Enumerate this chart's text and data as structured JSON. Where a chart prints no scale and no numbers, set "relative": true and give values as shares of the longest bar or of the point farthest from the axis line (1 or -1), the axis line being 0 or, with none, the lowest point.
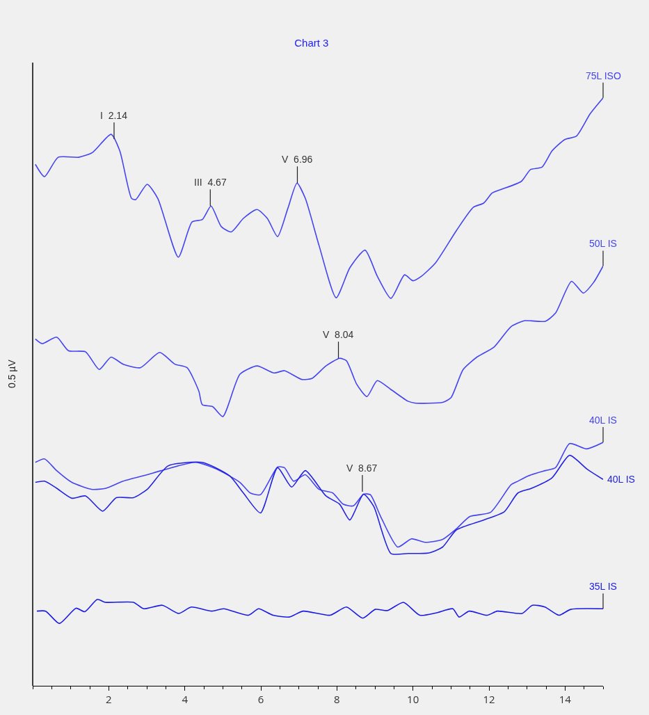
{
  "chart_data": {
    "type": "line",
    "title": "Chart 3",
    "ylabel": "0.5 µV",
    "relative": true,
    "legend": false,
    "grid": false,
    "marker": "none",
    "line_style": "solid",
    "xlim": [
      0,
      15
    ],
    "xticks": [
      2,
      4,
      6,
      8,
      10,
      12,
      14
    ],
    "annotations": [
      {
        "text": "I  2.14",
        "x": 2.14,
        "y": 0.93
      },
      {
        "text": "III  4.67",
        "x": 4.67,
        "y": 0.816
      },
      {
        "text": "V  6.96",
        "x": 6.96,
        "y": 0.855
      },
      {
        "text": "V  8.04",
        "x": 8.04,
        "y": 0.557
      },
      {
        "text": "V  8.67",
        "x": 8.67,
        "y": 0.33
      }
    ],
    "series": [
      {
        "name": "75L ISO",
        "color": "#4444f0",
        "x": [
          0.07,
          0.31,
          0.67,
          1.21,
          1.57,
          2.06,
          2.29,
          2.6,
          2.71,
          3.01,
          3.29,
          3.83,
          4.19,
          4.46,
          4.69,
          4.96,
          5.22,
          5.54,
          5.9,
          6.17,
          6.44,
          6.71,
          6.95,
          7.17,
          7.53,
          7.98,
          8.34,
          8.74,
          9.06,
          9.42,
          9.78,
          10.0,
          10.23,
          10.6,
          11.14,
          11.59,
          11.86,
          12.08,
          12.31,
          12.85,
          13.09,
          13.39,
          13.66,
          13.99,
          14.3,
          14.66,
          15.0
        ],
        "values": [
          0.887,
          0.866,
          0.899,
          0.899,
          0.907,
          0.938,
          0.91,
          0.829,
          0.827,
          0.853,
          0.829,
          0.729,
          0.789,
          0.793,
          0.816,
          0.781,
          0.772,
          0.795,
          0.81,
          0.795,
          0.764,
          0.812,
          0.855,
          0.829,
          0.749,
          0.66,
          0.711,
          0.741,
          0.697,
          0.659,
          0.699,
          0.689,
          0.697,
          0.72,
          0.774,
          0.814,
          0.821,
          0.838,
          0.844,
          0.858,
          0.878,
          0.882,
          0.91,
          0.929,
          0.935,
          0.973,
          1
        ]
      },
      {
        "name": "50L IS",
        "color": "#4444f0",
        "x": [
          0.07,
          0.25,
          0.63,
          0.94,
          1.39,
          1.75,
          2.06,
          2.38,
          2.83,
          3.34,
          3.74,
          4.06,
          4.37,
          4.46,
          4.73,
          5.0,
          5.45,
          5.9,
          6.35,
          6.62,
          7.08,
          7.35,
          7.71,
          8.07,
          8.25,
          8.52,
          8.79,
          9.06,
          9.42,
          9.87,
          10.05,
          10.78,
          11.0,
          11.32,
          11.68,
          12.13,
          12.58,
          12.94,
          13.48,
          13.75,
          14.17,
          14.48,
          14.75,
          15.0
        ],
        "values": [
          0.59,
          0.582,
          0.593,
          0.57,
          0.568,
          0.538,
          0.559,
          0.547,
          0.541,
          0.567,
          0.547,
          0.541,
          0.501,
          0.478,
          0.475,
          0.458,
          0.53,
          0.544,
          0.532,
          0.536,
          0.521,
          0.523,
          0.544,
          0.557,
          0.553,
          0.513,
          0.492,
          0.519,
          0.504,
          0.484,
          0.481,
          0.482,
          0.49,
          0.538,
          0.559,
          0.576,
          0.611,
          0.621,
          0.62,
          0.634,
          0.688,
          0.668,
          0.686,
          0.714
        ]
      },
      {
        "name": "40L IS",
        "color": "#4444f0",
        "x": [
          0.07,
          0.31,
          0.63,
          1.03,
          1.57,
          1.93,
          2.38,
          3.01,
          3.38,
          4.28,
          4.82,
          5.45,
          5.72,
          5.99,
          6.44,
          6.62,
          6.86,
          7.17,
          7.53,
          7.89,
          8.16,
          8.43,
          8.7,
          8.88,
          9.15,
          9.6,
          9.96,
          10.32,
          10.78,
          11.14,
          11.5,
          12.04,
          12.58,
          12.76,
          13.03,
          13.48,
          13.75,
          14.12,
          14.57,
          15.0
        ],
        "values": [
          0.38,
          0.386,
          0.366,
          0.346,
          0.334,
          0.336,
          0.348,
          0.359,
          0.366,
          0.38,
          0.369,
          0.346,
          0.328,
          0.325,
          0.372,
          0.371,
          0.348,
          0.359,
          0.334,
          0.328,
          0.309,
          0.306,
          0.326,
          0.325,
          0.288,
          0.236,
          0.25,
          0.244,
          0.249,
          0.267,
          0.288,
          0.295,
          0.342,
          0.348,
          0.357,
          0.366,
          0.371,
          0.412,
          0.403,
          0.414
        ]
      },
      {
        "name": "40L IS",
        "color": "#2222e0",
        "x": [
          0.07,
          0.31,
          0.63,
          1.03,
          1.39,
          1.84,
          2.2,
          2.65,
          3.01,
          3.56,
          4.46,
          5.18,
          5.54,
          5.99,
          6.44,
          6.81,
          7.17,
          7.71,
          8.07,
          8.34,
          8.7,
          8.97,
          9.42,
          9.87,
          10.42,
          10.78,
          11.14,
          11.86,
          12.4,
          12.76,
          13.12,
          13.66,
          14.12,
          14.57,
          15.0
        ],
        "values": [
          0.346,
          0.348,
          0.336,
          0.319,
          0.323,
          0.297,
          0.32,
          0.32,
          0.334,
          0.374,
          0.38,
          0.357,
          0.328,
          0.294,
          0.371,
          0.338,
          0.366,
          0.323,
          0.309,
          0.282,
          0.326,
          0.305,
          0.225,
          0.225,
          0.226,
          0.236,
          0.265,
          0.282,
          0.296,
          0.328,
          0.336,
          0.354,
          0.392,
          0.369,
          0.351
        ]
      },
      {
        "name": "35L IS",
        "color": "#1a1ae6",
        "x": [
          0.11,
          0.34,
          0.7,
          1.14,
          1.37,
          1.7,
          1.91,
          2.65,
          2.92,
          3.41,
          3.84,
          4.17,
          4.71,
          5.02,
          5.67,
          5.94,
          6.32,
          6.75,
          7.11,
          7.82,
          8.25,
          8.68,
          9.01,
          9.33,
          9.75,
          10.18,
          10.61,
          11.05,
          11.21,
          11.48,
          11.95,
          12.22,
          12.87,
          13.14,
          13.47,
          13.84,
          14.15,
          15.0
        ],
        "values": [
          0.127,
          0.127,
          0.106,
          0.132,
          0.126,
          0.147,
          0.142,
          0.142,
          0.131,
          0.137,
          0.123,
          0.134,
          0.127,
          0.131,
          0.12,
          0.131,
          0.12,
          0.117,
          0.127,
          0.12,
          0.134,
          0.115,
          0.13,
          0.128,
          0.142,
          0.12,
          0.124,
          0.131,
          0.117,
          0.127,
          0.12,
          0.127,
          0.123,
          0.137,
          0.134,
          0.12,
          0.13,
          0.131
        ]
      }
    ]
  }
}
